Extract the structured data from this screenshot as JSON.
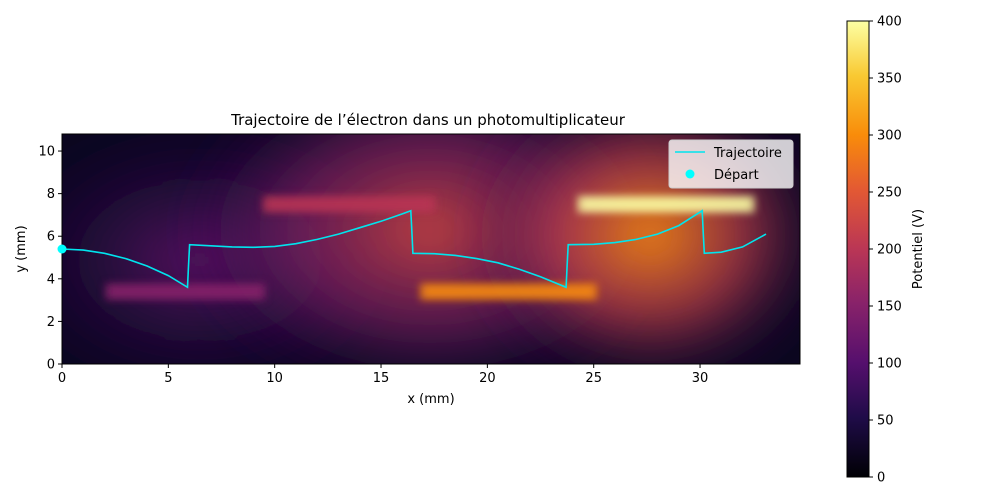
{
  "chart_data": {
    "type": "heatmap",
    "title": "Trajectoire de l’électron dans un photomultiplicateur",
    "xlabel": "x (mm)",
    "ylabel": "y (mm)",
    "xlim": [
      0,
      34.7
    ],
    "ylim": [
      0,
      10.8
    ],
    "xticks": [
      0,
      5,
      10,
      15,
      20,
      25,
      30
    ],
    "yticks": [
      0,
      2,
      4,
      6,
      8,
      10
    ],
    "grid": false,
    "legend": {
      "placement": "top-right",
      "entries": [
        "Trajectoire",
        "Départ"
      ]
    },
    "colorbar": {
      "label": "Potentiel (V)",
      "colormap": "inferno",
      "range": [
        0,
        400
      ],
      "ticks": [
        0,
        50,
        100,
        150,
        200,
        250,
        300,
        350,
        400
      ]
    },
    "dynodes": [
      {
        "x": [
          2.2,
          9.4
        ],
        "y": 3.4,
        "potential": 150
      },
      {
        "x": [
          9.6,
          17.4
        ],
        "y": 7.5,
        "potential": 200
      },
      {
        "x": [
          17.0,
          25.0
        ],
        "y": 3.4,
        "potential": 300
      },
      {
        "x": [
          24.4,
          32.4
        ],
        "y": 7.5,
        "potential": 400
      }
    ],
    "series": [
      {
        "name": "Trajectoire",
        "type": "line",
        "color": "#00e5ee",
        "x": [
          0,
          1,
          2,
          3,
          4,
          5,
          5.9,
          5.95,
          6.0,
          7,
          8,
          9,
          10,
          11,
          12,
          13,
          14,
          15,
          16,
          16.4,
          16.45,
          16.5,
          17.5,
          18.5,
          19.5,
          20.5,
          21.5,
          22.5,
          23.7,
          23.75,
          23.8,
          25,
          26,
          27,
          28,
          29,
          30.1,
          30.15,
          30.2,
          31,
          32,
          33.1
        ],
        "y": [
          5.4,
          5.35,
          5.2,
          4.95,
          4.6,
          4.15,
          3.6,
          4.6,
          5.6,
          5.55,
          5.5,
          5.48,
          5.52,
          5.65,
          5.85,
          6.1,
          6.4,
          6.7,
          7.05,
          7.2,
          6.2,
          5.2,
          5.18,
          5.1,
          4.95,
          4.75,
          4.45,
          4.1,
          3.6,
          4.6,
          5.6,
          5.62,
          5.7,
          5.85,
          6.1,
          6.5,
          7.2,
          6.2,
          5.2,
          5.25,
          5.5,
          6.1
        ]
      },
      {
        "name": "Départ",
        "type": "scatter",
        "color": "#00ffff",
        "x": [
          0
        ],
        "y": [
          5.4
        ]
      }
    ]
  }
}
